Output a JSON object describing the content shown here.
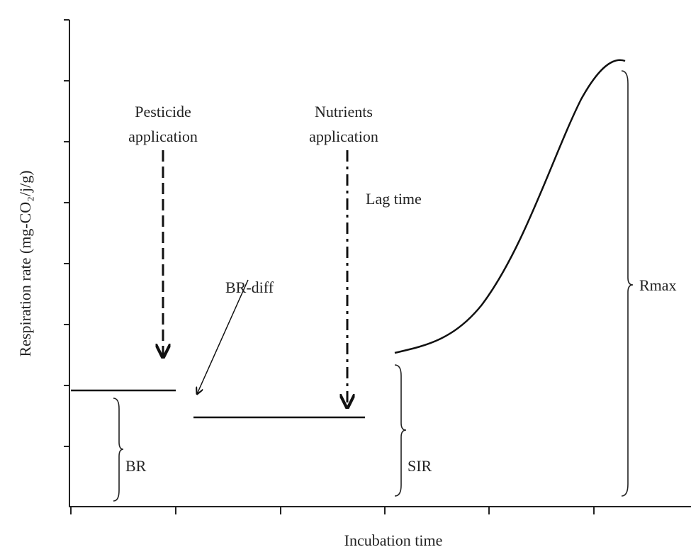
{
  "axes": {
    "x_label": "Incubation time",
    "y_label": "Respiration rate (mg-CO₂/j/g)"
  },
  "annotations": {
    "pesticide": [
      "Pesticide",
      "application"
    ],
    "nutrients": [
      "Nutrients",
      "application"
    ],
    "lag_time": "Lag time",
    "br_diff": "BR-diff",
    "br": "BR",
    "sir": "SIR",
    "rmax": "Rmax"
  }
}
